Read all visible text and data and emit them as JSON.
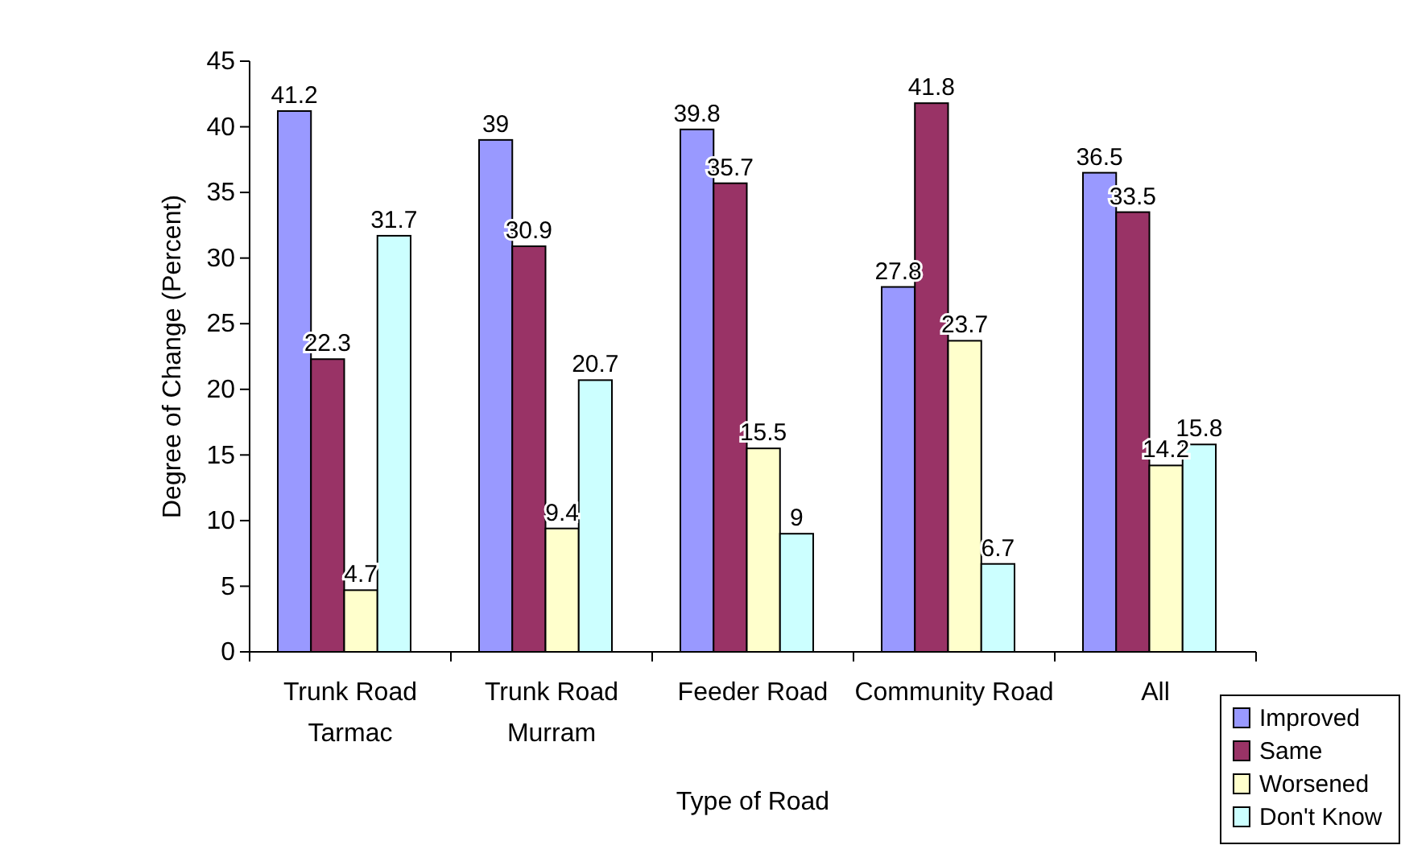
{
  "chart_data": {
    "type": "bar",
    "xlabel": "Type of Road",
    "ylabel": "Degree of Change (Percent)",
    "categories": [
      "Trunk Road Tarmac",
      "Trunk Road Murram",
      "Feeder Road",
      "Community Road",
      "All"
    ],
    "series": [
      {
        "name": "Improved",
        "color": "#9999ff",
        "values": [
          41.2,
          39,
          39.8,
          27.8,
          36.5
        ]
      },
      {
        "name": "Same",
        "color": "#993366",
        "values": [
          22.3,
          30.9,
          35.7,
          41.8,
          33.5
        ]
      },
      {
        "name": "Worsened",
        "color": "#ffffcc",
        "values": [
          4.7,
          9.4,
          15.5,
          23.7,
          14.2
        ]
      },
      {
        "name": "Don't Know",
        "color": "#ccffff",
        "values": [
          31.7,
          20.7,
          9,
          6.7,
          15.8
        ]
      }
    ],
    "ylim": [
      0,
      45
    ],
    "yticks": [
      0,
      5,
      10,
      15,
      20,
      25,
      30,
      35,
      40,
      45
    ],
    "data_labels": true,
    "legend": "bottom right",
    "grid": false
  }
}
